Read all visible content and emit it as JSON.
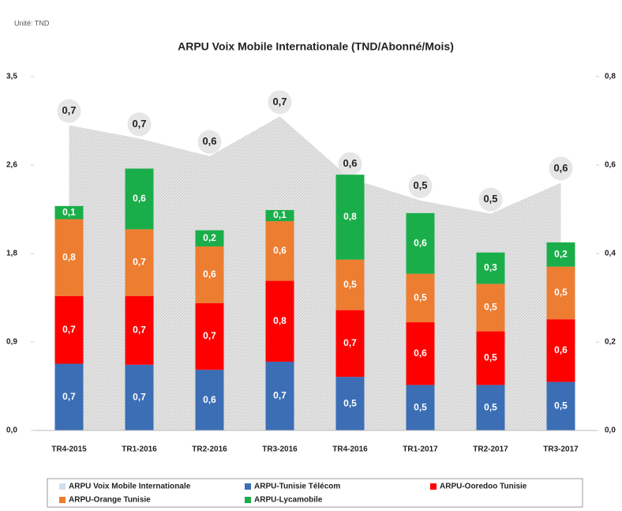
{
  "chart_data": {
    "type": "bar",
    "note": "Unité: TND",
    "title": "ARPU Voix Mobile Internationale (TND/Abonné/Mois)",
    "categories": [
      "TR4-2015",
      "TR1-2016",
      "TR2-2016",
      "TR3-2016",
      "TR4-2016",
      "TR1-2017",
      "TR2-2017",
      "TR3-2017"
    ],
    "ylim": [
      0,
      3.5
    ],
    "yticks": [
      {
        "value": 0,
        "label": "0,0"
      },
      {
        "value": 0.875,
        "label": "0,9"
      },
      {
        "value": 1.75,
        "label": "1,8"
      },
      {
        "value": 2.625,
        "label": "2,6"
      },
      {
        "value": 3.5,
        "label": "3,5"
      }
    ],
    "y2lim": [
      0,
      0.8
    ],
    "y2ticks": [
      {
        "value": 0,
        "label": "0,0"
      },
      {
        "value": 0.2,
        "label": "0,2"
      },
      {
        "value": 0.4,
        "label": "0,4"
      },
      {
        "value": 0.6,
        "label": "0,6"
      },
      {
        "value": 0.8,
        "label": "0,8"
      }
    ],
    "stacked": true,
    "series": [
      {
        "name": "ARPU  Voix Mobile Internationale",
        "type": "area",
        "axis": "y2",
        "color": "#dcdcdc",
        "values": [
          0.69,
          0.66,
          0.62,
          0.71,
          0.57,
          0.52,
          0.49,
          0.56
        ],
        "value_labels": [
          "0,7",
          "0,7",
          "0,6",
          "0,7",
          "0,6",
          "0,5",
          "0,5",
          "0,6"
        ]
      },
      {
        "name": "ARPU-Tunisie Télécom",
        "color": "#3b6eb5",
        "values": [
          0.66,
          0.65,
          0.6,
          0.68,
          0.53,
          0.45,
          0.45,
          0.48
        ],
        "value_labels": [
          "0,7",
          "0,7",
          "0,6",
          "0,7",
          "0,5",
          "0,5",
          "0,5",
          "0,5"
        ]
      },
      {
        "name": "ARPU-Ooredoo Tunisie",
        "color": "#ff0000",
        "values": [
          0.67,
          0.68,
          0.66,
          0.8,
          0.66,
          0.62,
          0.53,
          0.62
        ],
        "value_labels": [
          "0,7",
          "0,7",
          "0,7",
          "0,8",
          "0,7",
          "0,6",
          "0,5",
          "0,6"
        ]
      },
      {
        "name": "ARPU-Orange Tunisie",
        "color": "#ed7d31",
        "values": [
          0.76,
          0.66,
          0.56,
          0.59,
          0.5,
          0.48,
          0.47,
          0.52
        ],
        "value_labels": [
          "0,8",
          "0,7",
          "0,6",
          "0,6",
          "0,5",
          "0,5",
          "0,5",
          "0,5"
        ]
      },
      {
        "name": "ARPU-Lycamobile",
        "color": "#1aae4a",
        "values": [
          0.13,
          0.6,
          0.16,
          0.11,
          0.84,
          0.6,
          0.31,
          0.24
        ],
        "value_labels": [
          "0,1",
          "0,6",
          "0,2",
          "0,1",
          "0,8",
          "0,6",
          "0,3",
          "0,2"
        ]
      }
    ]
  }
}
